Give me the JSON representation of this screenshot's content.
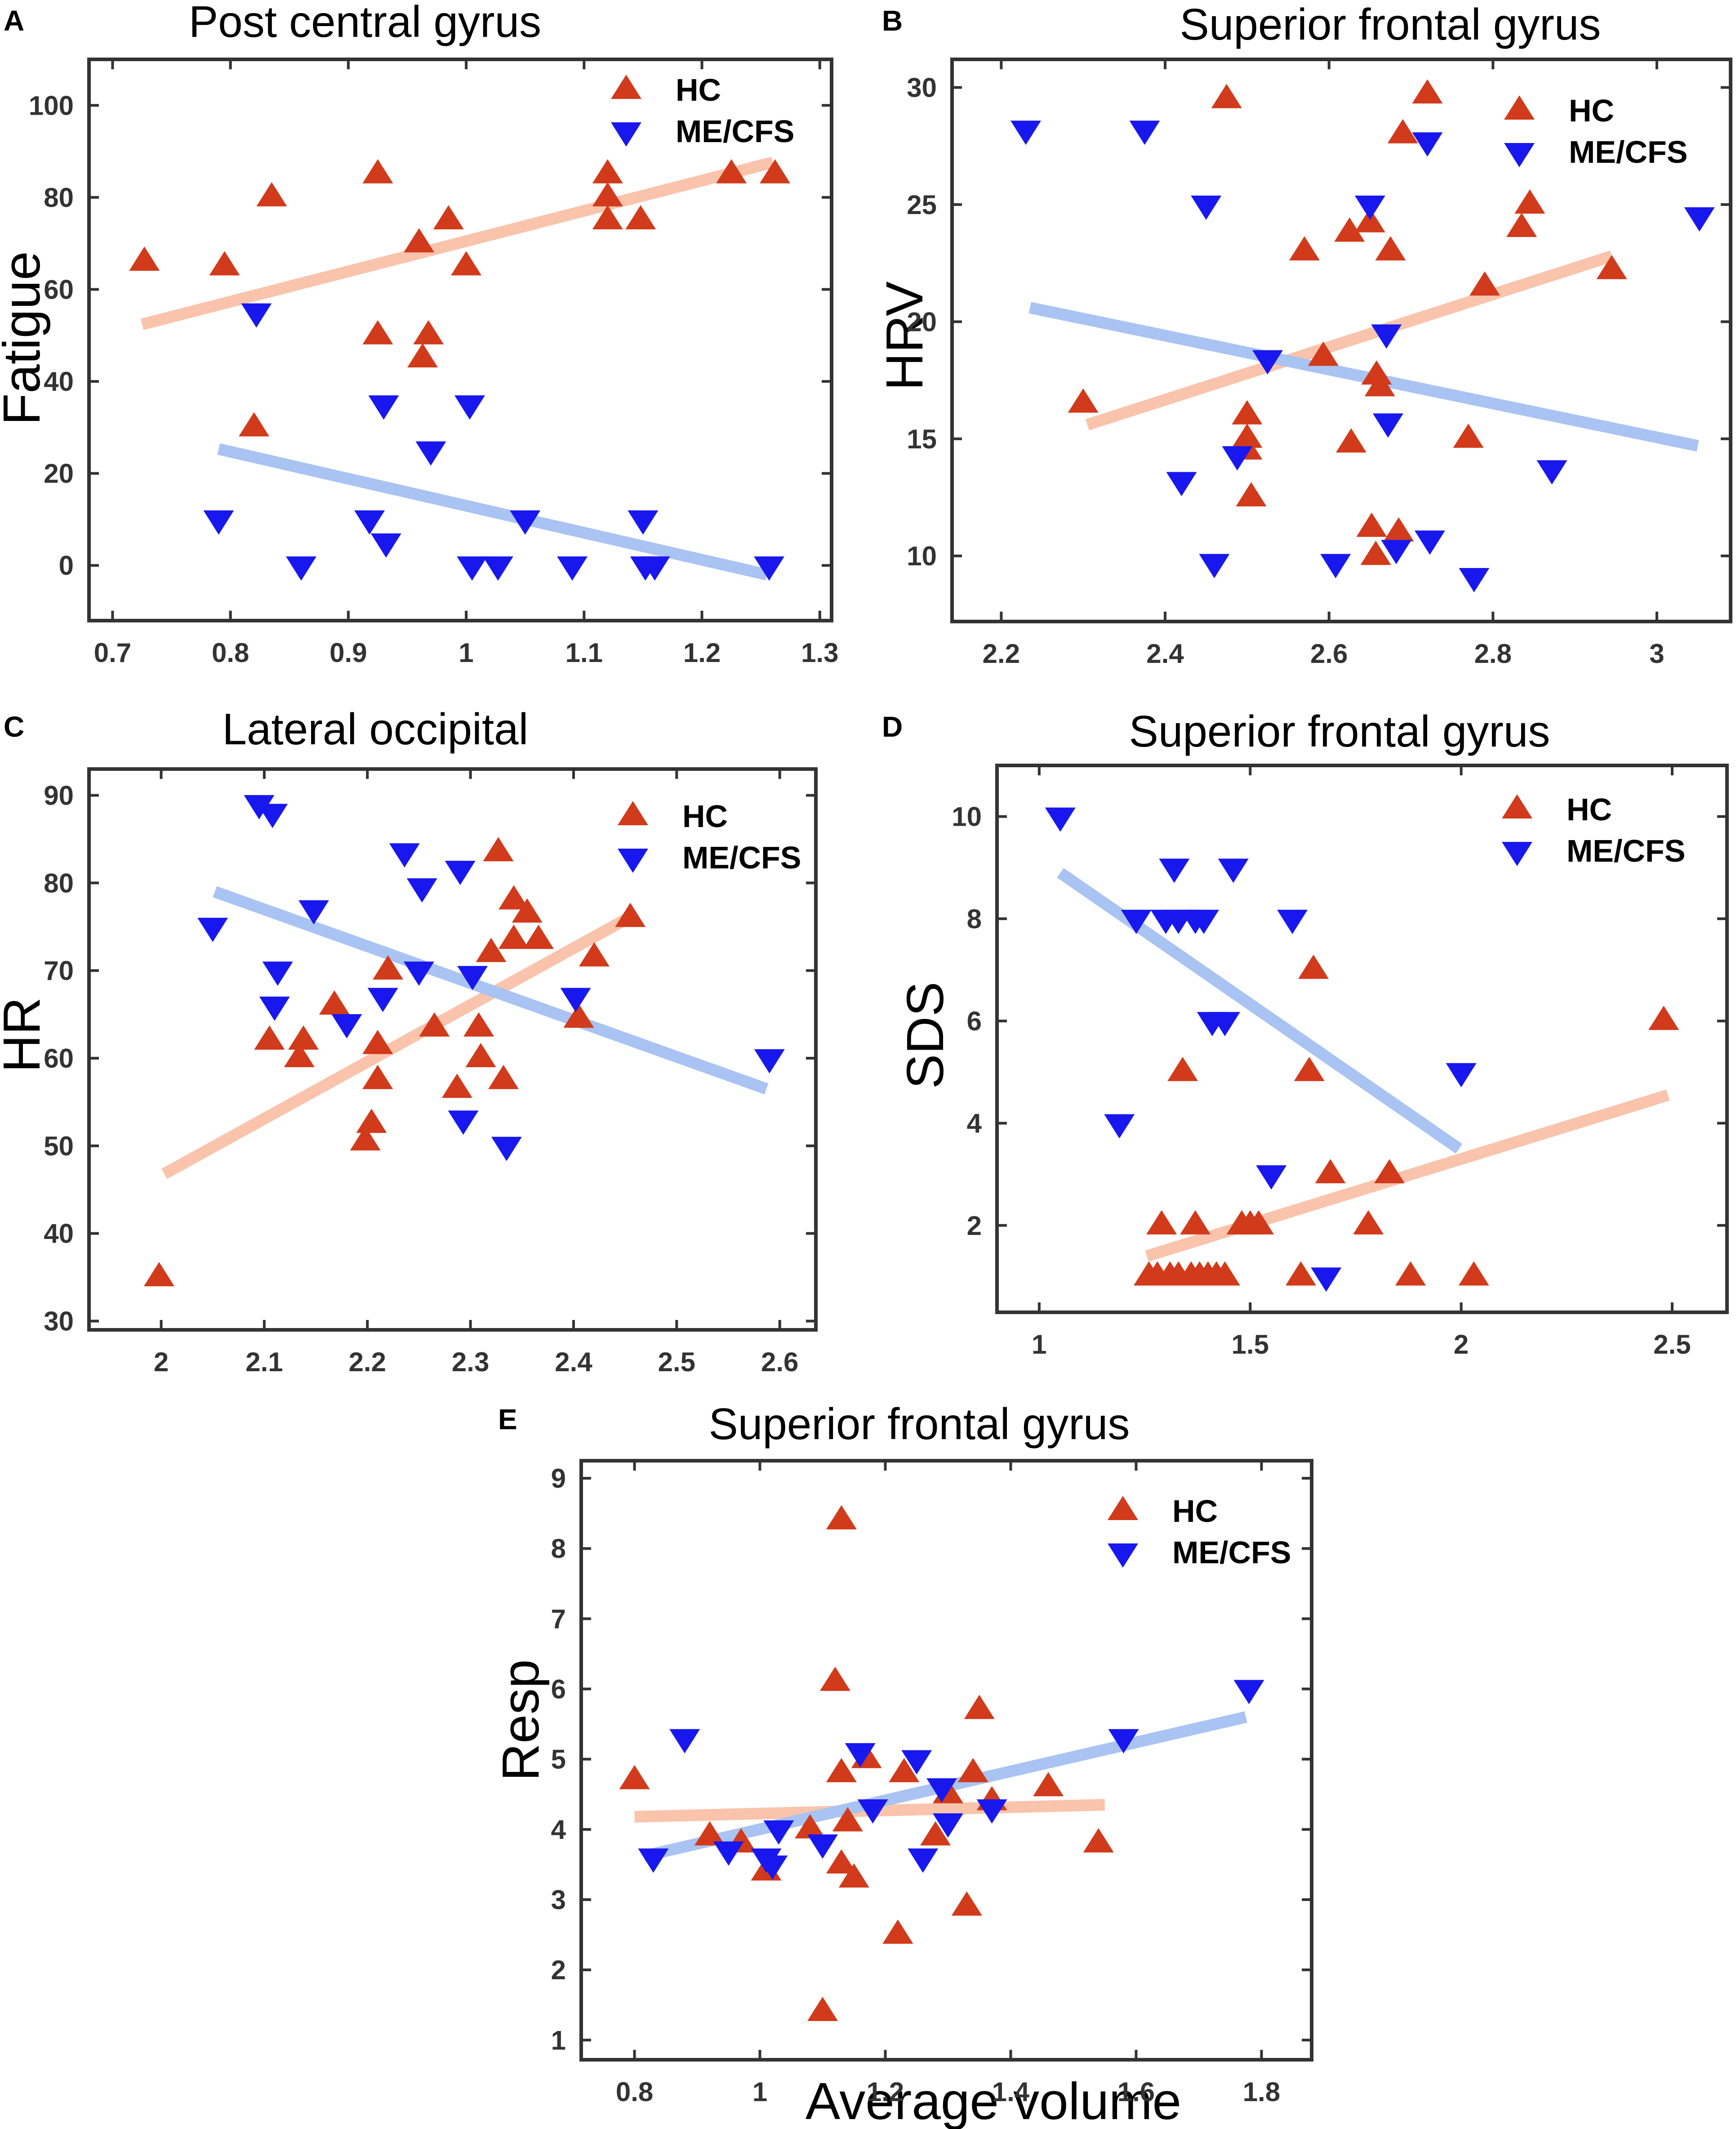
{
  "figure": {
    "bottom_xlabel": "Average volume"
  },
  "colors": {
    "hc": "#d13a1a",
    "me": "#1818ee",
    "hc_line": "#f9c4ab",
    "me_line": "#a9c3f2",
    "axis": "#333333"
  },
  "legend": {
    "hc": "HC",
    "me": "ME/CFS"
  },
  "chart_data": [
    {
      "type": "scatter",
      "panel": "A",
      "title": "Post central gyrus",
      "xlabel": "",
      "ylabel": "Fatigue",
      "xlim": [
        0.68,
        1.31
      ],
      "ylim": [
        -12,
        110
      ],
      "xticks": [
        0.7,
        0.8,
        0.9,
        1,
        1.1,
        1.2,
        1.3
      ],
      "xtick_labels": [
        "0.7",
        "0.8",
        "0.9",
        "1",
        "1.1",
        "1.2",
        "1.3"
      ],
      "yticks": [
        0,
        20,
        40,
        60,
        80,
        100
      ],
      "ytick_labels": [
        "0",
        "20",
        "40",
        "60",
        "80",
        "100"
      ],
      "legend_position": "top-right",
      "series": [
        {
          "name": "HC",
          "marker": "triangle-up",
          "points": [
            [
              0.727,
              66
            ],
            [
              0.795,
              65
            ],
            [
              0.835,
              80
            ],
            [
              0.82,
              30
            ],
            [
              0.925,
              85
            ],
            [
              0.925,
              50
            ],
            [
              0.96,
              70
            ],
            [
              0.985,
              75
            ],
            [
              0.968,
              50
            ],
            [
              0.963,
              45
            ],
            [
              1.0,
              65
            ],
            [
              1.12,
              85
            ],
            [
              1.12,
              80
            ],
            [
              1.12,
              75
            ],
            [
              1.148,
              75
            ],
            [
              1.225,
              85
            ],
            [
              1.262,
              85
            ]
          ],
          "fit": [
            [
              0.725,
              52.4
            ],
            [
              1.26,
              87.6
            ]
          ]
        },
        {
          "name": "ME/CFS",
          "marker": "triangle-down",
          "points": [
            [
              0.822,
              55
            ],
            [
              0.79,
              10
            ],
            [
              0.86,
              0
            ],
            [
              0.918,
              10
            ],
            [
              0.932,
              5
            ],
            [
              0.93,
              35
            ],
            [
              0.97,
              25
            ],
            [
              1.003,
              35
            ],
            [
              1.005,
              0
            ],
            [
              1.027,
              0
            ],
            [
              1.05,
              10
            ],
            [
              1.09,
              0
            ],
            [
              1.15,
              10
            ],
            [
              1.152,
              0
            ],
            [
              1.16,
              0
            ],
            [
              1.257,
              0
            ]
          ],
          "fit": [
            [
              0.79,
              25.3
            ],
            [
              1.255,
              -2
            ]
          ]
        }
      ]
    },
    {
      "type": "scatter",
      "panel": "B",
      "title": "Superior frontal gyrus",
      "xlabel": "",
      "ylabel": "HRV",
      "xlim": [
        2.14,
        3.09
      ],
      "ylim": [
        7.2,
        31.2
      ],
      "xticks": [
        2.2,
        2.4,
        2.6,
        2.8,
        3
      ],
      "xtick_labels": [
        "2.2",
        "2.4",
        "2.6",
        "2.8",
        "3"
      ],
      "yticks": [
        10,
        15,
        20,
        25,
        30
      ],
      "ytick_labels": [
        "10",
        "15",
        "20",
        "25",
        "30"
      ],
      "legend_position": "top-right",
      "series": [
        {
          "name": "HC",
          "marker": "triangle-up",
          "points": [
            [
              2.3,
              16.5
            ],
            [
              2.475,
              29.5
            ],
            [
              2.5,
              16
            ],
            [
              2.5,
              15
            ],
            [
              2.5,
              14.5
            ],
            [
              2.505,
              12.5
            ],
            [
              2.57,
              23
            ],
            [
              2.593,
              18.5
            ],
            [
              2.625,
              23.8
            ],
            [
              2.627,
              14.8
            ],
            [
              2.65,
              24.2
            ],
            [
              2.652,
              11.2
            ],
            [
              2.657,
              10
            ],
            [
              2.658,
              17.7
            ],
            [
              2.662,
              17.2
            ],
            [
              2.675,
              23
            ],
            [
              2.685,
              11
            ],
            [
              2.69,
              28
            ],
            [
              2.72,
              29.7
            ],
            [
              2.77,
              15
            ],
            [
              2.79,
              21.5
            ],
            [
              2.835,
              24
            ],
            [
              2.845,
              25
            ],
            [
              2.945,
              22.2
            ]
          ],
          "fit": [
            [
              2.305,
              15.6
            ],
            [
              2.945,
              22.8
            ]
          ]
        },
        {
          "name": "ME/CFS",
          "marker": "triangle-down",
          "points": [
            [
              2.23,
              28.2
            ],
            [
              2.375,
              28.2
            ],
            [
              2.45,
              25
            ],
            [
              2.42,
              13.2
            ],
            [
              2.46,
              9.7
            ],
            [
              2.488,
              14.3
            ],
            [
              2.525,
              18.4
            ],
            [
              2.608,
              9.7
            ],
            [
              2.65,
              25
            ],
            [
              2.67,
              19.5
            ],
            [
              2.672,
              15.7
            ],
            [
              2.682,
              10.3
            ],
            [
              2.72,
              27.7
            ],
            [
              2.723,
              10.7
            ],
            [
              2.777,
              9.1
            ],
            [
              2.872,
              13.7
            ],
            [
              3.052,
              24.5
            ]
          ],
          "fit": [
            [
              2.235,
              20.6
            ],
            [
              3.05,
              14.7
            ]
          ]
        }
      ]
    },
    {
      "type": "scatter",
      "panel": "C",
      "title": "Lateral occipital",
      "xlabel": "",
      "ylabel": "HR",
      "xlim": [
        1.93,
        2.635
      ],
      "ylim": [
        29,
        93
      ],
      "xticks": [
        2,
        2.1,
        2.2,
        2.3,
        2.4,
        2.5,
        2.6
      ],
      "xtick_labels": [
        "2",
        "2.1",
        "2.2",
        "2.3",
        "2.4",
        "2.5",
        "2.6"
      ],
      "yticks": [
        30,
        40,
        50,
        60,
        70,
        80,
        90
      ],
      "ytick_labels": [
        "30",
        "40",
        "50",
        "60",
        "70",
        "80",
        "90"
      ],
      "legend_position": "top-right",
      "series": [
        {
          "name": "HC",
          "marker": "triangle-up",
          "points": [
            [
              1.998,
              35
            ],
            [
              2.105,
              62
            ],
            [
              2.138,
              62
            ],
            [
              2.134,
              60
            ],
            [
              2.168,
              66
            ],
            [
              2.198,
              50.5
            ],
            [
              2.204,
              52.5
            ],
            [
              2.21,
              57.5
            ],
            [
              2.21,
              61.5
            ],
            [
              2.22,
              70
            ],
            [
              2.265,
              63.5
            ],
            [
              2.287,
              56.5
            ],
            [
              2.308,
              63.5
            ],
            [
              2.31,
              60
            ],
            [
              2.32,
              72
            ],
            [
              2.327,
              83.5
            ],
            [
              2.332,
              57.5
            ],
            [
              2.342,
              73.5
            ],
            [
              2.342,
              78
            ],
            [
              2.355,
              76.5
            ],
            [
              2.366,
              73.5
            ],
            [
              2.405,
              64.5
            ],
            [
              2.42,
              71.5
            ],
            [
              2.455,
              76
            ]
          ],
          "fit": [
            [
              2.003,
              46.8
            ],
            [
              2.45,
              75.8
            ]
          ]
        },
        {
          "name": "ME/CFS",
          "marker": "triangle-down",
          "points": [
            [
              2.05,
              75
            ],
            [
              2.095,
              89
            ],
            [
              2.108,
              88
            ],
            [
              2.113,
              70
            ],
            [
              2.11,
              66
            ],
            [
              2.148,
              77
            ],
            [
              2.18,
              64
            ],
            [
              2.215,
              67
            ],
            [
              2.236,
              83.5
            ],
            [
              2.253,
              79.5
            ],
            [
              2.25,
              70
            ],
            [
              2.29,
              81.5
            ],
            [
              2.293,
              53
            ],
            [
              2.302,
              69.5
            ],
            [
              2.335,
              50
            ],
            [
              2.402,
              67
            ],
            [
              2.59,
              60
            ]
          ],
          "fit": [
            [
              2.052,
              79
            ],
            [
              2.587,
              56.5
            ]
          ]
        }
      ]
    },
    {
      "type": "scatter",
      "panel": "D",
      "title": "Superior frontal gyrus",
      "xlabel": "",
      "ylabel": "SDS",
      "xlim": [
        0.9,
        2.63
      ],
      "ylim": [
        0.3,
        11
      ],
      "xticks": [
        1,
        1.5,
        2,
        2.5
      ],
      "xtick_labels": [
        "1",
        "1.5",
        "2",
        "2.5"
      ],
      "yticks": [
        2,
        4,
        6,
        8,
        10
      ],
      "ytick_labels": [
        "2",
        "4",
        "6",
        "8",
        "10"
      ],
      "legend_position": "top-right",
      "series": [
        {
          "name": "HC",
          "marker": "triangle-up",
          "points": [
            [
              1.26,
              1
            ],
            [
              1.28,
              1
            ],
            [
              1.29,
              2
            ],
            [
              1.31,
              1
            ],
            [
              1.33,
              1
            ],
            [
              1.34,
              5
            ],
            [
              1.36,
              1
            ],
            [
              1.37,
              2
            ],
            [
              1.38,
              1
            ],
            [
              1.4,
              1
            ],
            [
              1.42,
              1
            ],
            [
              1.44,
              1
            ],
            [
              1.48,
              2
            ],
            [
              1.5,
              2
            ],
            [
              1.52,
              2
            ],
            [
              1.62,
              1
            ],
            [
              1.64,
              5
            ],
            [
              1.65,
              7
            ],
            [
              1.69,
              3
            ],
            [
              1.78,
              2
            ],
            [
              1.83,
              3
            ],
            [
              1.88,
              1
            ],
            [
              2.03,
              1
            ],
            [
              2.48,
              6
            ]
          ],
          "fit": [
            [
              1.255,
              1.4
            ],
            [
              2.49,
              4.55
            ]
          ]
        },
        {
          "name": "ME/CFS",
          "marker": "triangle-down",
          "points": [
            [
              1.05,
              10
            ],
            [
              1.19,
              4
            ],
            [
              1.23,
              8
            ],
            [
              1.3,
              8
            ],
            [
              1.32,
              9
            ],
            [
              1.33,
              8
            ],
            [
              1.37,
              8
            ],
            [
              1.39,
              8
            ],
            [
              1.41,
              6
            ],
            [
              1.44,
              6
            ],
            [
              1.46,
              9
            ],
            [
              1.55,
              3
            ],
            [
              1.6,
              8
            ],
            [
              1.68,
              1
            ],
            [
              2.0,
              5
            ]
          ],
          "fit": [
            [
              1.05,
              8.9
            ],
            [
              1.995,
              3.5
            ]
          ]
        }
      ]
    },
    {
      "type": "scatter",
      "panel": "E",
      "title": "Superior frontal gyrus",
      "xlabel": "Average volume",
      "ylabel": "Resp",
      "xlim": [
        0.715,
        1.88
      ],
      "ylim": [
        0.72,
        9.25
      ],
      "xticks": [
        0.8,
        1,
        1.2,
        1.4,
        1.6,
        1.8
      ],
      "xtick_labels": [
        "0.8",
        "1",
        "1.2",
        "1.4",
        "1.6",
        "1.8"
      ],
      "yticks": [
        1,
        2,
        3,
        4,
        5,
        6,
        7,
        8,
        9
      ],
      "ytick_labels": [
        "1",
        "2",
        "3",
        "4",
        "5",
        "6",
        "7",
        "8",
        "9"
      ],
      "legend_position": "top-right",
      "series": [
        {
          "name": "HC",
          "marker": "triangle-up",
          "points": [
            [
              0.8,
              4.7
            ],
            [
              0.92,
              3.9
            ],
            [
              0.97,
              3.8
            ],
            [
              1.01,
              3.4
            ],
            [
              1.08,
              4
            ],
            [
              1.1,
              1.4
            ],
            [
              1.12,
              6.1
            ],
            [
              1.13,
              3.5
            ],
            [
              1.13,
              8.4
            ],
            [
              1.13,
              4.8
            ],
            [
              1.14,
              4.1
            ],
            [
              1.15,
              3.3
            ],
            [
              1.17,
              5
            ],
            [
              1.22,
              2.5
            ],
            [
              1.23,
              4.8
            ],
            [
              1.28,
              3.9
            ],
            [
              1.3,
              4.5
            ],
            [
              1.33,
              2.9
            ],
            [
              1.34,
              4.8
            ],
            [
              1.35,
              5.7
            ],
            [
              1.37,
              4.4
            ],
            [
              1.46,
              4.6
            ],
            [
              1.54,
              3.8
            ]
          ],
          "fit": [
            [
              0.8,
              4.18
            ],
            [
              1.55,
              4.35
            ]
          ]
        },
        {
          "name": "ME/CFS",
          "marker": "triangle-down",
          "points": [
            [
              0.83,
              3.6
            ],
            [
              0.88,
              5.3
            ],
            [
              0.95,
              3.7
            ],
            [
              1.01,
              3.6
            ],
            [
              1.02,
              3.5
            ],
            [
              1.03,
              4
            ],
            [
              1.1,
              3.8
            ],
            [
              1.16,
              5.1
            ],
            [
              1.18,
              4.3
            ],
            [
              1.25,
              5
            ],
            [
              1.26,
              3.6
            ],
            [
              1.29,
              4.6
            ],
            [
              1.3,
              4.1
            ],
            [
              1.37,
              4.3
            ],
            [
              1.58,
              5.3
            ],
            [
              1.78,
              6
            ]
          ],
          "fit": [
            [
              0.815,
              3.62
            ],
            [
              1.775,
              5.6
            ]
          ]
        }
      ]
    }
  ]
}
